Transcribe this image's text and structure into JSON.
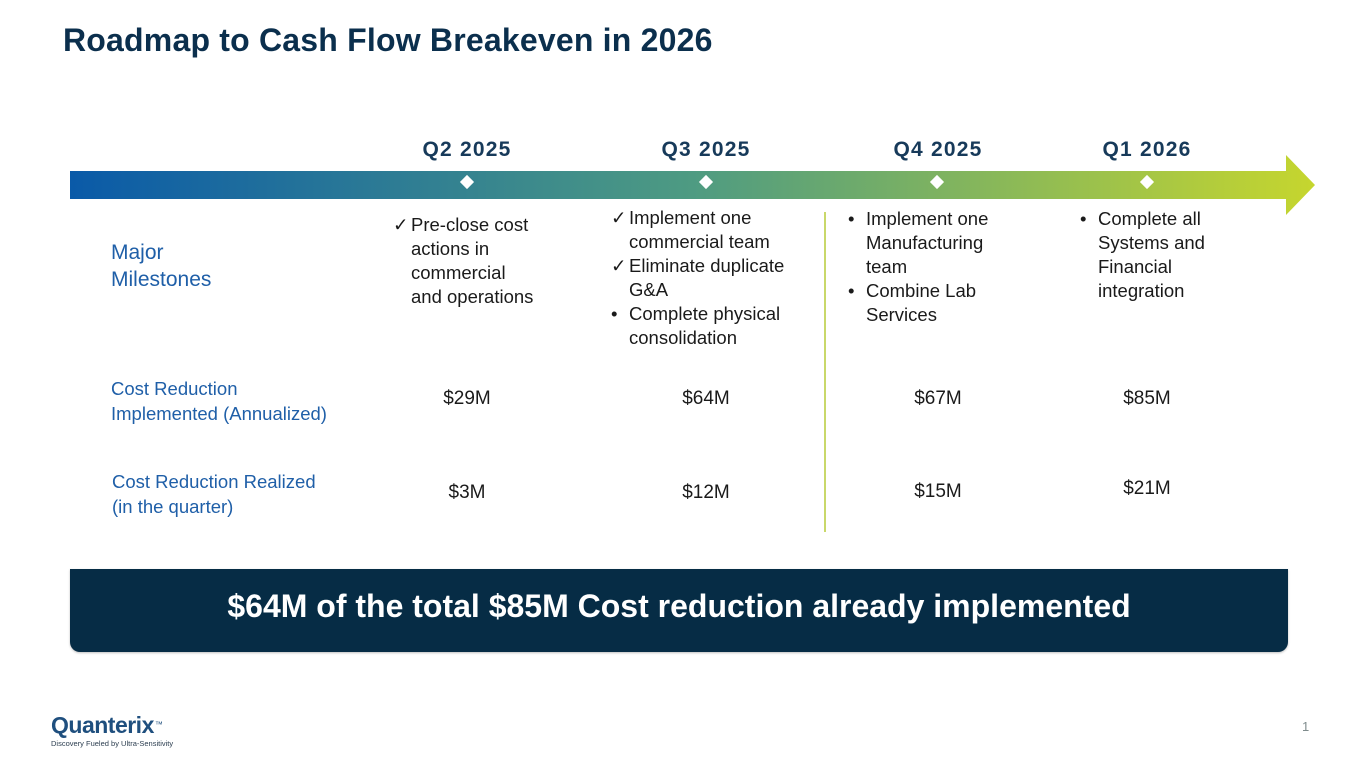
{
  "title": "Roadmap to Cash Flow Breakeven in 2026",
  "colors": {
    "title": "#0b2f4d",
    "label_blue": "#1f5fa8",
    "arrow_start": "#0a5aa8",
    "arrow_mid": "#4e9b82",
    "arrow_end": "#c6d62e",
    "banner_bg": "#062c45"
  },
  "quarters": [
    "Q2 2025",
    "Q3 2025",
    "Q4 2025",
    "Q1 2026"
  ],
  "row_labels": {
    "milestones": [
      "Major",
      "Milestones"
    ],
    "implemented": [
      "Cost Reduction",
      "Implemented (Annualized)"
    ],
    "realized": [
      "Cost Reduction Realized",
      "(in the quarter)"
    ]
  },
  "markers": {
    "check": "✓",
    "bullet": "•"
  },
  "milestones": [
    {
      "items": [
        {
          "marker": "check",
          "lines": [
            "Pre-close cost",
            "actions in",
            "commercial",
            "and operations"
          ]
        }
      ]
    },
    {
      "items": [
        {
          "marker": "check",
          "lines": [
            "Implement one",
            "commercial team"
          ]
        },
        {
          "marker": "check",
          "lines": [
            "Eliminate duplicate",
            "G&A"
          ]
        },
        {
          "marker": "bullet",
          "lines": [
            "Complete physical",
            "consolidation"
          ]
        }
      ]
    },
    {
      "items": [
        {
          "marker": "bullet",
          "lines": [
            "Implement one",
            "Manufacturing",
            "team"
          ]
        },
        {
          "marker": "bullet",
          "lines": [
            "Combine Lab",
            "Services"
          ]
        }
      ]
    },
    {
      "items": [
        {
          "marker": "bullet",
          "lines": [
            "Complete all",
            "Systems and",
            "Financial",
            "integration"
          ]
        }
      ]
    }
  ],
  "implemented_values": [
    "$29M",
    "$64M",
    "$67M",
    "$85M"
  ],
  "realized_values": [
    "$3M",
    "$12M",
    "$15M",
    "$21M"
  ],
  "banner": "$64M of the total $85M Cost reduction already implemented",
  "logo": {
    "name": "Quanterix",
    "mark": "™",
    "tagline": "Discovery Fueled by Ultra-Sensitivity"
  },
  "page_number": "1"
}
